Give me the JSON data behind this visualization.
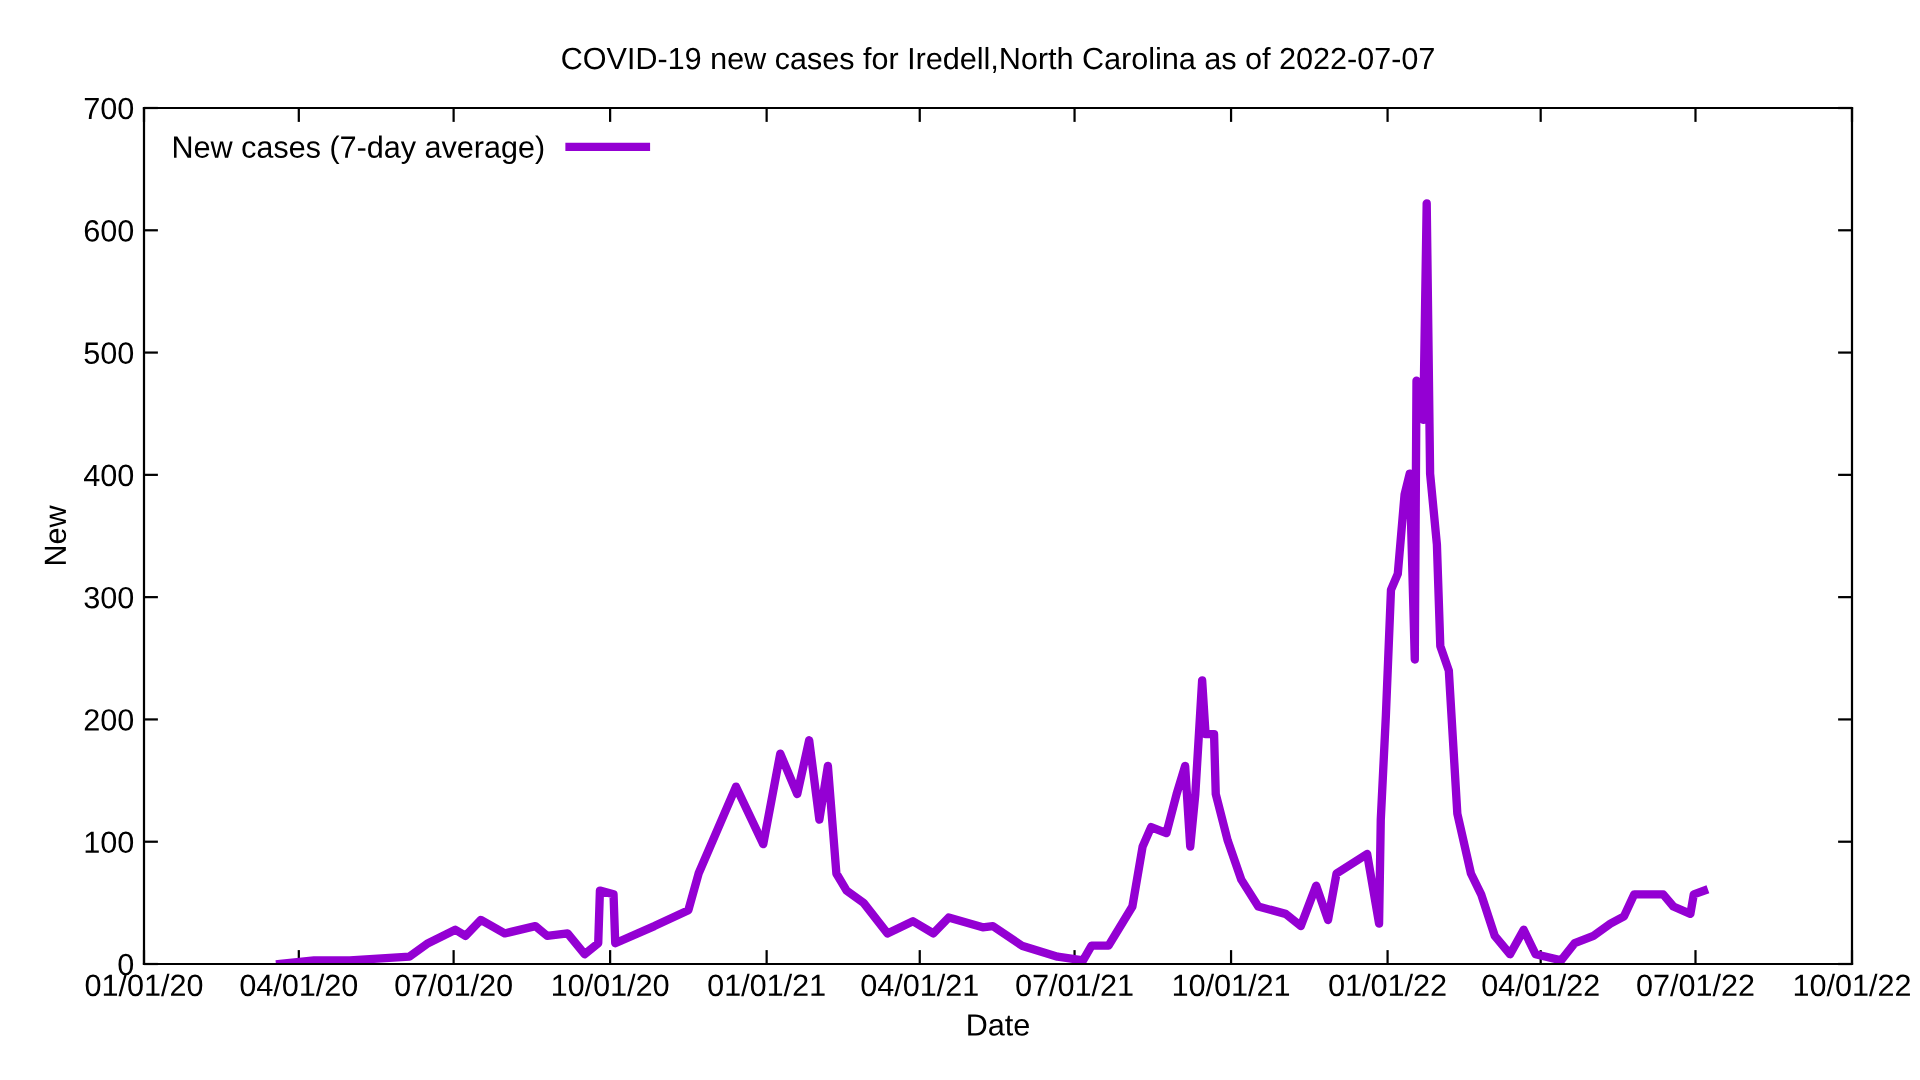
{
  "chart_data": {
    "type": "line",
    "title": "COVID-19 new cases for Iredell,North Carolina as of 2022-07-07",
    "xlabel": "Date",
    "ylabel": "New",
    "x": [
      "2020-03-21",
      "2020-04-10",
      "2020-05-01",
      "2020-06-05",
      "2020-06-16",
      "2020-07-02",
      "2020-07-08",
      "2020-07-17",
      "2020-07-31",
      "2020-08-18",
      "2020-08-25",
      "2020-09-06",
      "2020-09-16",
      "2020-09-24",
      "2020-09-25",
      "2020-10-03",
      "2020-10-04",
      "2020-10-27",
      "2020-11-16",
      "2020-11-22",
      "2020-12-14",
      "2020-12-30",
      "2021-01-09",
      "2021-01-19",
      "2021-01-26",
      "2021-02-01",
      "2021-02-06",
      "2021-02-11",
      "2021-02-17",
      "2021-02-27",
      "2021-03-13",
      "2021-03-28",
      "2021-04-09",
      "2021-04-18",
      "2021-05-08",
      "2021-05-14",
      "2021-05-31",
      "2021-06-21",
      "2021-07-06",
      "2021-07-11",
      "2021-07-21",
      "2021-08-04",
      "2021-08-10",
      "2021-08-15",
      "2021-08-24",
      "2021-08-30",
      "2021-09-04",
      "2021-09-07",
      "2021-09-10",
      "2021-09-14",
      "2021-09-16",
      "2021-09-21",
      "2021-09-22",
      "2021-09-29",
      "2021-10-07",
      "2021-10-17",
      "2021-11-02",
      "2021-11-11",
      "2021-11-20",
      "2021-11-27",
      "2021-12-02",
      "2021-12-20",
      "2021-12-27",
      "2021-12-28",
      "2021-12-31",
      "2022-01-03",
      "2022-01-07",
      "2022-01-11",
      "2022-01-14",
      "2022-01-17",
      "2022-01-18",
      "2022-01-22",
      "2022-01-24",
      "2022-01-26",
      "2022-01-30",
      "2022-02-01",
      "2022-02-06",
      "2022-02-11",
      "2022-02-19",
      "2022-02-25",
      "2022-03-05",
      "2022-03-14",
      "2022-03-22",
      "2022-03-29",
      "2022-04-13",
      "2022-04-21",
      "2022-05-02",
      "2022-05-12",
      "2022-05-20",
      "2022-05-26",
      "2022-06-12",
      "2022-06-18",
      "2022-06-28",
      "2022-06-30",
      "2022-07-06"
    ],
    "series": [
      {
        "name": "New cases (7-day average)",
        "color": "#9400d3",
        "values": [
          0,
          3,
          3,
          6,
          17,
          28,
          23,
          36,
          25,
          31,
          23,
          25,
          8,
          17,
          60,
          57,
          17,
          31,
          44,
          74,
          145,
          98,
          172,
          139,
          183,
          118,
          162,
          74,
          60,
          50,
          25,
          35,
          25,
          38,
          30,
          31,
          15,
          6,
          3,
          15,
          15,
          47,
          96,
          112,
          107,
          139,
          162,
          96,
          139,
          232,
          188,
          188,
          139,
          101,
          69,
          47,
          41,
          31,
          64,
          36,
          74,
          90,
          33,
          118,
          203,
          306,
          319,
          384,
          401,
          249,
          477,
          445,
          622,
          401,
          343,
          260,
          240,
          123,
          74,
          57,
          23,
          8,
          28,
          8,
          3,
          17,
          23,
          33,
          39,
          57,
          57,
          47,
          41,
          57,
          60
        ]
      }
    ],
    "xlim": [
      "2020-01-01",
      "2022-10-01"
    ],
    "xticks": [
      {
        "value": "2020-01-01",
        "label": "01/01/20"
      },
      {
        "value": "2020-04-01",
        "label": "04/01/20"
      },
      {
        "value": "2020-07-01",
        "label": "07/01/20"
      },
      {
        "value": "2020-10-01",
        "label": "10/01/20"
      },
      {
        "value": "2021-01-01",
        "label": "01/01/21"
      },
      {
        "value": "2021-04-01",
        "label": "04/01/21"
      },
      {
        "value": "2021-07-01",
        "label": "07/01/21"
      },
      {
        "value": "2021-10-01",
        "label": "10/01/21"
      },
      {
        "value": "2022-01-01",
        "label": "01/01/22"
      },
      {
        "value": "2022-04-01",
        "label": "04/01/22"
      },
      {
        "value": "2022-07-01",
        "label": "07/01/22"
      },
      {
        "value": "2022-10-01",
        "label": "10/01/22"
      }
    ],
    "ylim": [
      0,
      700
    ],
    "yticks": [
      0,
      100,
      200,
      300,
      400,
      500,
      600,
      700
    ],
    "grid": false,
    "legend": "top left",
    "marker": "none",
    "line_style": "solid"
  }
}
